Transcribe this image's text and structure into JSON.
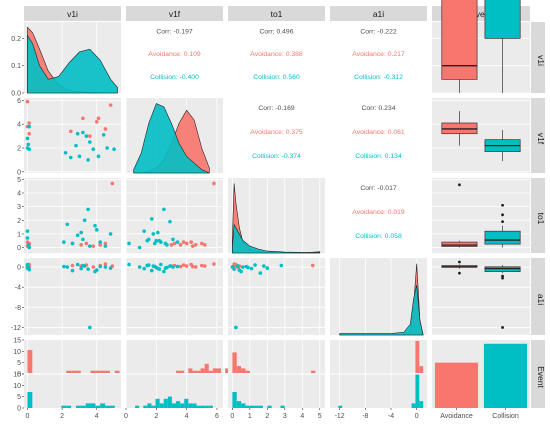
{
  "colors": {
    "avoidance": "#F8766D",
    "collision": "#00BFC4",
    "panel_bg": "#EBEBEB",
    "strip_bg": "#D9D9D9",
    "grid": "#FFFFFF",
    "text": "#4D4D4D"
  },
  "chart_data": {
    "type": "scatter-matrix",
    "variables": [
      "v1i",
      "v1f",
      "to1",
      "a1i",
      "Event"
    ],
    "groups": [
      "Avoidance",
      "Collision"
    ],
    "correlations": [
      {
        "pair": [
          "v1i",
          "v1f"
        ],
        "corr": "Corr: -0.197",
        "avoidance": "Avoidance: 0.109",
        "collision": "Collision: -0.400"
      },
      {
        "pair": [
          "v1i",
          "to1"
        ],
        "corr": "Corr: 0.496",
        "avoidance": "Avoidance: 0.388",
        "collision": "Collision: 0.560"
      },
      {
        "pair": [
          "v1i",
          "a1i"
        ],
        "corr": "Corr: -0.222",
        "avoidance": "Avoidance: 0.217",
        "collision": "Collision: -0.312"
      },
      {
        "pair": [
          "v1f",
          "to1"
        ],
        "corr": "Corr: -0.169",
        "avoidance": "Avoidance: 0.375",
        "collision": "Collision: -0.374"
      },
      {
        "pair": [
          "v1f",
          "a1i"
        ],
        "corr": "Corr: 0.234",
        "avoidance": "Avoidance: 0.061",
        "collision": "Collision: 0.134"
      },
      {
        "pair": [
          "to1",
          "a1i"
        ],
        "corr": "Corr: -0.017",
        "avoidance": "Avoidance: 0.019",
        "collision": "Collision: 0.058"
      }
    ],
    "axes": {
      "v1i": {
        "range": [
          -0.2,
          5.4
        ],
        "ticks": [
          "0",
          "2",
          "4"
        ]
      },
      "v1f": {
        "range": [
          0,
          6.4
        ],
        "ticks": [
          "0",
          "2",
          "4",
          "6"
        ]
      },
      "to1": {
        "range": [
          -0.25,
          5.3
        ],
        "ticks": [
          "0",
          "1",
          "2",
          "3",
          "4",
          "5"
        ]
      },
      "a1i": {
        "range": [
          -13.5,
          1.6
        ],
        "ticks": [
          "-12",
          "-8",
          "-4",
          "0"
        ]
      }
    },
    "row_ticks": {
      "v1i": {
        "range": [
          0,
          0.26
        ],
        "ticks": [
          "0.0",
          "0.1",
          "0.2"
        ]
      },
      "v1f": {
        "range": [
          -0.1,
          6.2
        ],
        "ticks": [
          "0",
          "2",
          "4",
          "6"
        ]
      },
      "to1": {
        "range": [
          -0.4,
          5.1
        ],
        "ticks": [
          "0",
          "1",
          "2",
          "3",
          "4",
          "5"
        ]
      },
      "a1i": {
        "range": [
          -13.5,
          1.8
        ],
        "ticks": [
          "-12",
          "-8",
          "-4",
          "0"
        ]
      },
      "Event": {
        "range": [
          0,
          18
        ],
        "ticks": [
          "0",
          "5",
          "10",
          "15"
        ]
      }
    },
    "event_counts": {
      "Avoidance": 12,
      "Collision": 17
    },
    "event_ticks": [
      "Avoidance",
      "Collision"
    ],
    "density_v1i": {
      "x": [
        0,
        0.3,
        0.7,
        1.2,
        1.8,
        2.4,
        3.0,
        3.6,
        4.2,
        4.8,
        5.2
      ],
      "Avoidance": [
        0.24,
        0.22,
        0.16,
        0.08,
        0.03,
        0.01,
        0.005,
        0.002,
        0.001,
        0.0,
        0.0
      ],
      "Collision": [
        0.21,
        0.18,
        0.1,
        0.05,
        0.06,
        0.11,
        0.15,
        0.16,
        0.12,
        0.05,
        0.02
      ]
    },
    "density_v1f": {
      "x": [
        0.5,
        1.0,
        1.5,
        2.0,
        2.5,
        3.0,
        3.5,
        4.0,
        4.5,
        5.0,
        5.5
      ],
      "Avoidance": [
        0.0,
        0.0,
        0.01,
        0.03,
        0.08,
        0.18,
        0.3,
        0.38,
        0.32,
        0.15,
        0.03
      ],
      "Collision": [
        0.02,
        0.12,
        0.3,
        0.42,
        0.4,
        0.3,
        0.18,
        0.1,
        0.06,
        0.02,
        0.0
      ]
    },
    "density_to1": {
      "x": [
        0,
        0.1,
        0.2,
        0.4,
        0.6,
        1.0,
        1.5,
        2.0,
        3.0,
        4.0,
        5.0
      ],
      "Avoidance": [
        0.5,
        2.2,
        1.6,
        0.8,
        0.35,
        0.12,
        0.05,
        0.02,
        0.01,
        0.0,
        0.04
      ],
      "Collision": [
        0.2,
        0.9,
        0.8,
        0.6,
        0.4,
        0.22,
        0.12,
        0.06,
        0.03,
        0.02,
        0.02
      ]
    },
    "density_a1i": {
      "x": [
        -12,
        -10,
        -8,
        -6,
        -4,
        -2,
        -1,
        -0.5,
        0,
        0.5,
        1
      ],
      "Avoidance": [
        0.0,
        0.0,
        0.0,
        0.0,
        0.0,
        0.01,
        0.05,
        0.4,
        1.0,
        0.2,
        0.0
      ],
      "Collision": [
        0.02,
        0.02,
        0.02,
        0.02,
        0.02,
        0.04,
        0.15,
        0.5,
        0.7,
        0.2,
        0.0
      ]
    },
    "box_v1i": {
      "Avoidance": {
        "min": 0.0,
        "q1": 0.05,
        "median": 0.1,
        "q3": 3.3,
        "max": 5.3
      },
      "Collision": {
        "min": 0.0,
        "q1": 0.2,
        "median": 1.3,
        "q3": 3.4,
        "max": 5.3
      }
    },
    "box_v1f": {
      "Avoidance": {
        "min": 2.2,
        "q1": 3.2,
        "median": 3.6,
        "q3": 4.1,
        "max": 5.1
      },
      "Collision": {
        "min": 0.9,
        "q1": 1.7,
        "median": 2.2,
        "q3": 2.7,
        "max": 3.5
      }
    },
    "box_to1": {
      "Avoidance": {
        "min": 0.0,
        "q1": 0.08,
        "median": 0.18,
        "q3": 0.4,
        "max": 0.5,
        "outliers": [
          4.6
        ]
      },
      "Collision": {
        "min": 0.0,
        "q1": 0.25,
        "median": 0.55,
        "q3": 1.2,
        "max": 1.6,
        "outliers": [
          1.9,
          2.4,
          3.1
        ]
      }
    },
    "box_a1i": {
      "Avoidance": {
        "min": -0.3,
        "q1": -0.05,
        "median": 0.05,
        "q3": 0.3,
        "max": 0.5,
        "outliers": [
          -1.2,
          1.0
        ]
      },
      "Collision": {
        "min": -1.2,
        "q1": -0.9,
        "median": -0.3,
        "q3": 0.05,
        "max": 0.4,
        "outliers": [
          -1.8,
          -2.2,
          -12.0
        ]
      }
    },
    "scatter_v1f_v1i": {
      "Avoidance": [
        [
          0.0,
          5.9
        ],
        [
          0.1,
          4.1
        ],
        [
          0.0,
          3.8
        ],
        [
          3.2,
          4.5
        ],
        [
          3.6,
          3.0
        ],
        [
          4.1,
          4.5
        ],
        [
          4.5,
          3.6
        ],
        [
          4.8,
          5.6
        ],
        [
          2.5,
          3.4
        ],
        [
          0.1,
          3.2
        ],
        [
          4.0,
          4.2
        ]
      ],
      "Collision": [
        [
          0.0,
          2.8
        ],
        [
          0.05,
          2.3
        ],
        [
          0.1,
          3.8
        ],
        [
          0.0,
          2.0
        ],
        [
          0.1,
          1.9
        ],
        [
          2.2,
          1.6
        ],
        [
          2.5,
          1.2
        ],
        [
          2.8,
          2.2
        ],
        [
          3.0,
          1.3
        ],
        [
          3.2,
          3.3
        ],
        [
          3.4,
          3.0
        ],
        [
          3.6,
          2.5
        ],
        [
          3.8,
          1.9
        ],
        [
          4.1,
          1.3
        ],
        [
          4.4,
          3.1
        ],
        [
          4.6,
          2.0
        ],
        [
          5.0,
          1.9
        ],
        [
          3.5,
          1.0
        ],
        [
          2.9,
          3.2
        ]
      ]
    },
    "scatter_to1_v1i": {
      "Avoidance": [
        [
          0.0,
          0.1
        ],
        [
          0.1,
          0.2
        ],
        [
          0.0,
          0.4
        ],
        [
          3.1,
          0.2
        ],
        [
          3.4,
          0.3
        ],
        [
          3.8,
          0.1
        ],
        [
          4.2,
          0.2
        ],
        [
          4.5,
          0.3
        ],
        [
          4.9,
          4.7
        ],
        [
          2.6,
          0.3
        ],
        [
          0.1,
          0.3
        ]
      ],
      "Collision": [
        [
          0.0,
          0.7
        ],
        [
          0.05,
          0.2
        ],
        [
          0.1,
          0.0
        ],
        [
          0.0,
          1.2
        ],
        [
          2.3,
          1.7
        ],
        [
          2.6,
          0.3
        ],
        [
          2.9,
          0.9
        ],
        [
          3.1,
          1.1
        ],
        [
          3.3,
          2.0
        ],
        [
          3.5,
          2.8
        ],
        [
          3.6,
          0.1
        ],
        [
          3.9,
          1.6
        ],
        [
          4.2,
          0.4
        ],
        [
          4.5,
          0.1
        ],
        [
          4.8,
          1.0
        ],
        [
          2.1,
          0.4
        ],
        [
          3.2,
          0.6
        ],
        [
          4.0,
          1.3
        ]
      ]
    },
    "scatter_to1_v1f": {
      "Avoidance": [
        [
          3.2,
          0.3
        ],
        [
          3.6,
          0.2
        ],
        [
          4.0,
          0.3
        ],
        [
          4.3,
          0.4
        ],
        [
          4.6,
          0.2
        ],
        [
          5.0,
          0.3
        ],
        [
          5.2,
          0.2
        ],
        [
          3.8,
          0.4
        ],
        [
          5.8,
          4.7
        ],
        [
          4.4,
          0.1
        ],
        [
          3.0,
          0.2
        ]
      ],
      "Collision": [
        [
          0.9,
          0.0
        ],
        [
          1.2,
          1.2
        ],
        [
          1.5,
          0.6
        ],
        [
          1.7,
          2.1
        ],
        [
          1.9,
          0.3
        ],
        [
          2.1,
          1.1
        ],
        [
          2.3,
          0.4
        ],
        [
          2.5,
          2.8
        ],
        [
          2.7,
          0.2
        ],
        [
          2.9,
          1.9
        ],
        [
          3.1,
          0.6
        ],
        [
          1.4,
          0.5
        ],
        [
          2.2,
          0.5
        ],
        [
          1.8,
          1.0
        ],
        [
          2.6,
          0.3
        ],
        [
          0.2,
          0.3
        ],
        [
          3.4,
          0.4
        ],
        [
          2.0,
          0.5
        ]
      ]
    },
    "scatter_a1i_v1i": {
      "Avoidance": [
        [
          0.0,
          0.3
        ],
        [
          0.1,
          0.5
        ],
        [
          0.0,
          0.0
        ],
        [
          3.1,
          0.2
        ],
        [
          3.4,
          0.4
        ],
        [
          3.8,
          0.0
        ],
        [
          4.2,
          0.3
        ],
        [
          4.5,
          0.6
        ],
        [
          4.9,
          0.2
        ],
        [
          2.6,
          0.3
        ],
        [
          0.1,
          -0.1
        ]
      ],
      "Collision": [
        [
          0.0,
          -0.2
        ],
        [
          0.05,
          0.0
        ],
        [
          0.1,
          -0.5
        ],
        [
          0.0,
          0.5
        ],
        [
          2.3,
          0.0
        ],
        [
          2.6,
          -0.7
        ],
        [
          2.9,
          0.5
        ],
        [
          3.1,
          -0.3
        ],
        [
          3.3,
          0.2
        ],
        [
          3.5,
          -0.4
        ],
        [
          3.6,
          -12.0
        ],
        [
          3.9,
          -0.9
        ],
        [
          4.2,
          0.1
        ],
        [
          4.5,
          0.0
        ],
        [
          4.8,
          -0.2
        ],
        [
          2.1,
          0.1
        ],
        [
          3.2,
          0.3
        ],
        [
          4.0,
          -0.6
        ]
      ]
    },
    "scatter_a1i_v1f": {
      "Avoidance": [
        [
          3.2,
          0.3
        ],
        [
          3.6,
          0.1
        ],
        [
          4.0,
          0.2
        ],
        [
          4.3,
          0.5
        ],
        [
          4.6,
          0.0
        ],
        [
          5.0,
          0.3
        ],
        [
          5.2,
          0.2
        ],
        [
          3.8,
          0.4
        ],
        [
          5.8,
          0.6
        ],
        [
          4.4,
          0.1
        ],
        [
          3.0,
          0.2
        ]
      ],
      "Collision": [
        [
          0.9,
          0.0
        ],
        [
          1.2,
          -0.3
        ],
        [
          1.5,
          0.4
        ],
        [
          1.7,
          -0.7
        ],
        [
          1.9,
          0.1
        ],
        [
          2.1,
          -0.3
        ],
        [
          2.3,
          0.5
        ],
        [
          2.5,
          -0.9
        ],
        [
          2.7,
          -0.1
        ],
        [
          2.9,
          0.2
        ],
        [
          3.1,
          0.0
        ],
        [
          1.4,
          0.3
        ],
        [
          2.2,
          -0.4
        ],
        [
          1.8,
          0.2
        ],
        [
          2.6,
          -0.2
        ],
        [
          0.2,
          0.5
        ],
        [
          3.4,
          0.1
        ],
        [
          2.0,
          -0.1
        ]
      ]
    },
    "scatter_a1i_to1": {
      "Avoidance": [
        [
          0.1,
          0.2
        ],
        [
          0.2,
          0.3
        ],
        [
          0.15,
          0.4
        ],
        [
          0.3,
          0.0
        ],
        [
          0.25,
          0.3
        ],
        [
          0.4,
          0.2
        ],
        [
          0.1,
          0.6
        ],
        [
          0.05,
          0.1
        ],
        [
          4.6,
          0.3
        ],
        [
          0.35,
          -0.1
        ],
        [
          0.2,
          0.5
        ]
      ],
      "Collision": [
        [
          0.0,
          0.0
        ],
        [
          0.1,
          -0.4
        ],
        [
          0.3,
          0.2
        ],
        [
          0.5,
          -0.9
        ],
        [
          0.8,
          0.1
        ],
        [
          1.1,
          -0.3
        ],
        [
          1.3,
          0.4
        ],
        [
          1.6,
          -1.2
        ],
        [
          2.0,
          -0.2
        ],
        [
          2.8,
          0.3
        ],
        [
          0.2,
          -12.0
        ],
        [
          0.6,
          0.0
        ],
        [
          0.4,
          -0.6
        ],
        [
          1.8,
          0.2
        ],
        [
          0.9,
          -0.1
        ]
      ]
    },
    "hist_v1i": {
      "bin_start": 0,
      "bin_width": 0.28,
      "Avoidance": [
        10,
        0,
        0,
        0,
        0,
        0,
        0,
        0,
        1,
        1,
        1,
        0,
        0,
        1,
        1,
        1,
        1,
        0,
        1
      ],
      "Collision": [
        7,
        0,
        0,
        0,
        0,
        0,
        0,
        1,
        1,
        0,
        1,
        1,
        2,
        2,
        1,
        2,
        1,
        1,
        0
      ]
    },
    "hist_v1f": {
      "bin_start": 0.6,
      "bin_width": 0.27,
      "Avoidance": [
        0,
        0,
        0,
        0,
        0,
        0,
        0,
        0,
        0,
        0,
        1,
        1,
        0,
        2,
        1,
        1,
        2,
        4,
        1,
        2,
        2,
        0,
        2,
        1,
        0
      ],
      "Collision": [
        1,
        0,
        1,
        2,
        1,
        4,
        2,
        4,
        5,
        2,
        3,
        2,
        4,
        2,
        2,
        1,
        1,
        1,
        1,
        0,
        0,
        0,
        0,
        0,
        0
      ]
    },
    "hist_to1": {
      "bin_start": 0,
      "bin_width": 0.25,
      "Avoidance": [
        9,
        3,
        2,
        1,
        0,
        0,
        0,
        0,
        0,
        0,
        0,
        0,
        0,
        0,
        0,
        0,
        0,
        0,
        1
      ],
      "Collision": [
        7,
        3,
        2,
        1,
        1,
        1,
        1,
        0,
        1,
        0,
        0,
        1,
        0,
        0,
        0,
        0,
        0,
        0,
        0
      ]
    },
    "hist_a1i": {
      "bin_start": -12.2,
      "bin_width": 0.6,
      "Avoidance": [
        0,
        0,
        0,
        0,
        0,
        0,
        0,
        0,
        0,
        0,
        0,
        0,
        0,
        0,
        0,
        0,
        0,
        0,
        0,
        0,
        14,
        3
      ],
      "Collision": [
        1,
        0,
        0,
        0,
        0,
        0,
        0,
        0,
        0,
        0,
        0,
        0,
        0,
        0,
        0,
        0,
        0,
        0,
        0,
        2,
        15,
        3
      ]
    }
  }
}
